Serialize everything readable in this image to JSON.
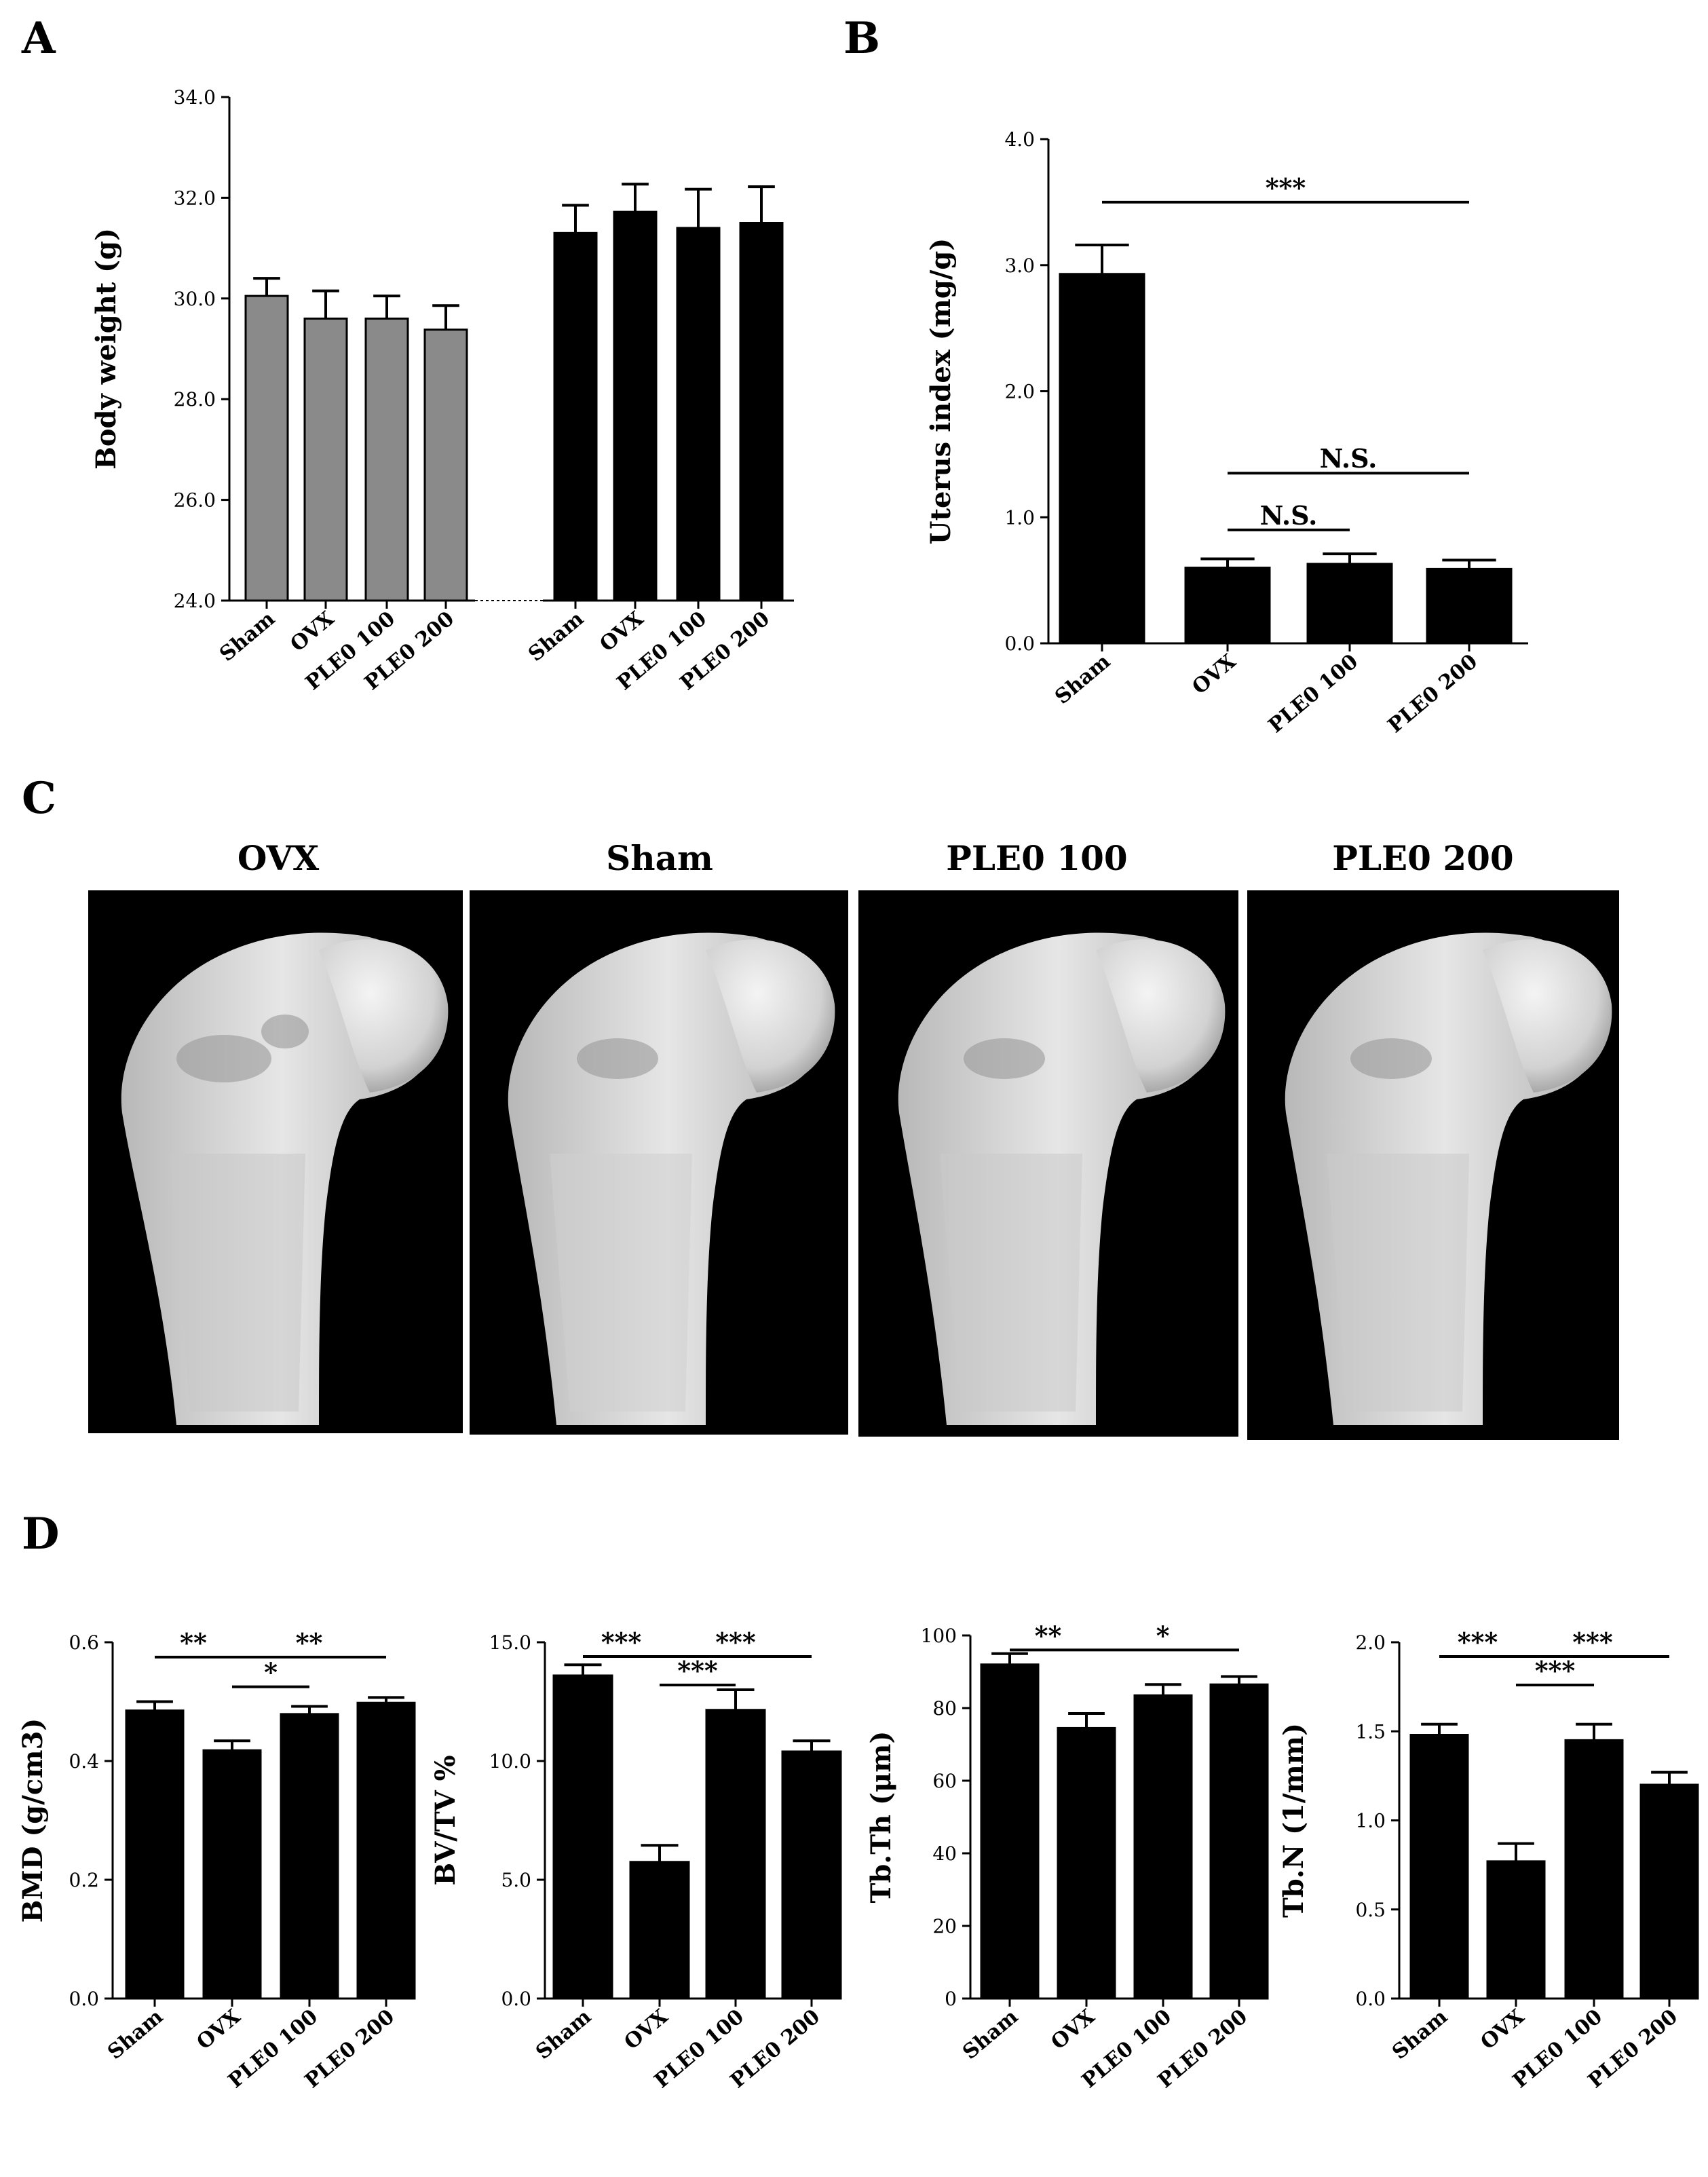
{
  "figure": {
    "panel_letters": [
      "A",
      "B",
      "C",
      "D"
    ]
  },
  "colors": {
    "bar_gray": "#8a8a8a",
    "bar_black": "#000000",
    "axis": "#000000"
  },
  "panel_c": {
    "titles": [
      "OVX",
      "Sham",
      "PLE0 100",
      "PLE0 200"
    ]
  },
  "chart_data": [
    {
      "id": "A",
      "type": "bar",
      "ylabel": "Body weight (g)",
      "ylim": [
        24.0,
        34.0
      ],
      "yticks": [
        24.0,
        26.0,
        28.0,
        30.0,
        32.0,
        34.0
      ],
      "tick_decimals": 1,
      "groups": [
        {
          "color": "#8a8a8a",
          "categories": [
            "Sham",
            "OVX",
            "PLE0 100",
            "PLE0 200"
          ],
          "values": [
            30.05,
            29.6,
            29.6,
            29.38
          ],
          "errors": [
            0.35,
            0.55,
            0.45,
            0.48
          ]
        },
        {
          "color": "#000000",
          "categories": [
            "Sham",
            "OVX",
            "PLE0 100",
            "PLE0 200"
          ],
          "values": [
            31.3,
            31.72,
            31.4,
            31.5
          ],
          "errors": [
            0.55,
            0.55,
            0.77,
            0.72
          ]
        }
      ],
      "annotations": []
    },
    {
      "id": "B",
      "type": "bar",
      "ylabel": "Uterus index (mg/g)",
      "ylim": [
        0.0,
        4.0
      ],
      "yticks": [
        0.0,
        1.0,
        2.0,
        3.0,
        4.0
      ],
      "tick_decimals": 1,
      "categories": [
        "Sham",
        "OVX",
        "PLE0 100",
        "PLE0 200"
      ],
      "values": [
        2.93,
        0.6,
        0.63,
        0.59
      ],
      "errors": [
        0.23,
        0.07,
        0.08,
        0.07
      ],
      "annotations": [
        {
          "from": 0,
          "to": 3,
          "y": 3.5,
          "label": "***"
        },
        {
          "from": 1,
          "to": 3,
          "y": 1.35,
          "label": "N.S."
        },
        {
          "from": 1,
          "to": 2,
          "y": 0.9,
          "label": "N.S."
        }
      ]
    },
    {
      "id": "D1",
      "type": "bar",
      "ylabel": "BMD (g/cm3)",
      "ylim": [
        0.0,
        0.6
      ],
      "yticks": [
        0.0,
        0.2,
        0.4,
        0.6
      ],
      "tick_decimals": 1,
      "categories": [
        "Sham",
        "OVX",
        "PLE0 100",
        "PLE0 200"
      ],
      "values": [
        0.485,
        0.418,
        0.479,
        0.498
      ],
      "errors": [
        0.015,
        0.016,
        0.013,
        0.009
      ],
      "annotations": [
        {
          "from": 0,
          "to": 1,
          "y": 0.575,
          "label": "**"
        },
        {
          "from": 1,
          "to": 3,
          "y": 0.575,
          "label": "**"
        },
        {
          "from": 1,
          "to": 2,
          "y": 0.525,
          "label": "*"
        }
      ]
    },
    {
      "id": "D2",
      "type": "bar",
      "ylabel": "BV/TV %",
      "ylim": [
        0.0,
        15.0
      ],
      "yticks": [
        0.0,
        5.0,
        10.0,
        15.0
      ],
      "tick_decimals": 1,
      "categories": [
        "Sham",
        "OVX",
        "PLE0 100",
        "PLE0 200"
      ],
      "values": [
        13.6,
        5.75,
        12.15,
        10.4
      ],
      "errors": [
        0.45,
        0.7,
        0.85,
        0.45
      ],
      "annotations": [
        {
          "from": 0,
          "to": 1,
          "y": 14.4,
          "label": "***"
        },
        {
          "from": 1,
          "to": 3,
          "y": 14.4,
          "label": "***"
        },
        {
          "from": 1,
          "to": 2,
          "y": 13.2,
          "label": "***"
        }
      ]
    },
    {
      "id": "D3",
      "type": "bar",
      "ylabel": "Tb.Th (μm)",
      "ylim": [
        0,
        100
      ],
      "yticks": [
        0,
        20,
        40,
        60,
        80,
        100
      ],
      "tick_decimals": 0,
      "categories": [
        "Sham",
        "OVX",
        "PLE0 100",
        "PLE0 200"
      ],
      "values": [
        92,
        74.5,
        83.5,
        86.5
      ],
      "errors": [
        3,
        4,
        3,
        2.2
      ],
      "annotations": [
        {
          "from": 0,
          "to": 1,
          "y": 96,
          "label": "**"
        },
        {
          "from": 1,
          "to": 3,
          "y": 96,
          "label": "*"
        }
      ]
    },
    {
      "id": "D4",
      "type": "bar",
      "ylabel": "Tb.N (1/mm)",
      "ylim": [
        0.0,
        2.0
      ],
      "yticks": [
        0.0,
        0.5,
        1.0,
        1.5,
        2.0
      ],
      "tick_decimals": 1,
      "categories": [
        "Sham",
        "OVX",
        "PLE0 100",
        "PLE0 200"
      ],
      "values": [
        1.48,
        0.77,
        1.45,
        1.2
      ],
      "errors": [
        0.06,
        0.1,
        0.09,
        0.07
      ],
      "annotations": [
        {
          "from": 0,
          "to": 1,
          "y": 1.92,
          "label": "***"
        },
        {
          "from": 1,
          "to": 3,
          "y": 1.92,
          "label": "***"
        },
        {
          "from": 1,
          "to": 2,
          "y": 1.76,
          "label": "***"
        }
      ]
    }
  ]
}
